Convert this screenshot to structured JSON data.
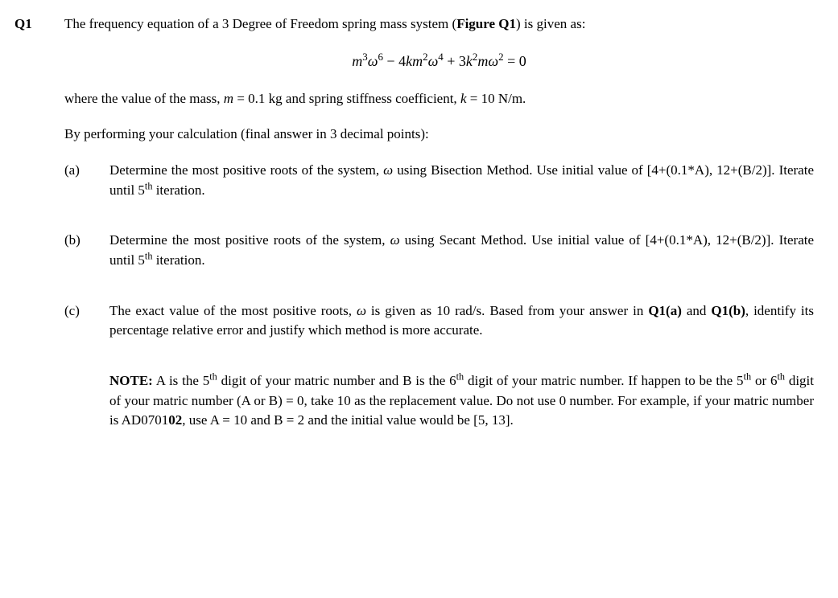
{
  "question": {
    "label": "Q1",
    "intro_part1": "The frequency equation of a 3 Degree of Freedom spring mass system (",
    "intro_bold": "Figure Q1",
    "intro_part2": ") is given as:",
    "equation": {
      "term1_base": "m",
      "term1_exp": "3",
      "term1_var": "ω",
      "term1_varexp": "6",
      "minus": " − ",
      "term2_coef": "4",
      "term2_k": "km",
      "term2_exp": "2",
      "term2_var": "ω",
      "term2_varexp": "4",
      "plus": " + ",
      "term3_coef": "3",
      "term3_k": "k",
      "term3_kexp": "2",
      "term3_m": "mω",
      "term3_varexp": "2",
      "equals": " = 0"
    },
    "where_part1": "where the value of the mass, ",
    "where_m": "m",
    "where_part2": " = 0.1 kg and spring stiffness coefficient, ",
    "where_k": "k",
    "where_part3": " = 10 N/m.",
    "instruction": "By performing your calculation (final answer in 3 decimal points):",
    "parts": {
      "a": {
        "label": "(a)",
        "t1": "Determine the most positive roots of the system, ",
        "omega": "ω ",
        "t2": "using Bisection Method. Use initial value of [4+(0.1*A), 12+(B/2)]. Iterate until 5",
        "sup": "th",
        "t3": " iteration."
      },
      "b": {
        "label": "(b)",
        "t1": "Determine the most positive roots of the system, ",
        "omega": "ω ",
        "t2": "using Secant Method. Use initial value of [4+(0.1*A), 12+(B/2)]. Iterate until 5",
        "sup": "th",
        "t3": " iteration."
      },
      "c": {
        "label": "(c)",
        "t1": "The exact value of the most positive roots, ",
        "omega": "ω ",
        "t2": "is given as 10 rad/s. Based from your answer in ",
        "bold1": "Q1(a)",
        "t3": " and ",
        "bold2": "Q1(b)",
        "t4": ", identify its percentage relative error and justify which method is more accurate."
      }
    },
    "note": {
      "label": "NOTE:",
      "t1": "  A is the 5",
      "sup1": "th",
      "t2": " digit of your matric number and B is the 6",
      "sup2": "th",
      "t3": " digit of your matric number. If happen to be the 5",
      "sup3": "th",
      "t4": " or 6",
      "sup4": "th",
      "t5": " digit of your matric number (A or B) = 0, take 10 as the replacement value. Do not use 0 number. For example, if your matric number is AD0701",
      "bold": "02",
      "t6": ", use A = 10 and B = 2 and the initial value would be [5, 13]."
    }
  }
}
